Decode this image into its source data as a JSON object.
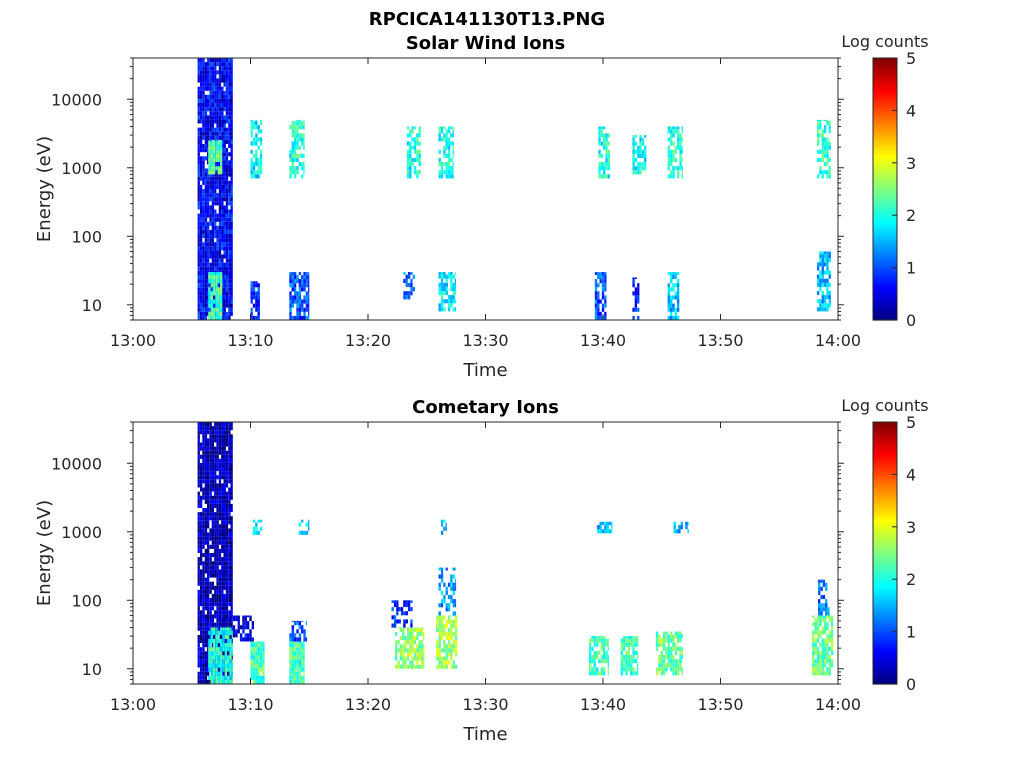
{
  "figure_title": "RPCICA141130T13.PNG",
  "chart_data": [
    {
      "type": "heatmap",
      "title": "Solar Wind Ions",
      "xlabel": "Time",
      "ylabel": "Energy (eV)",
      "x_ticks": [
        "13:00",
        "13:10",
        "13:20",
        "13:30",
        "13:40",
        "13:50",
        "14:00"
      ],
      "y_ticks": [
        "10",
        "100",
        "1000",
        "10000"
      ],
      "y_scale": "log",
      "y_range": [
        6,
        40000
      ],
      "colorbar": {
        "label": "Log counts",
        "ticks": [
          "0",
          "1",
          "2",
          "3",
          "4",
          "5"
        ],
        "range": [
          0,
          5
        ],
        "colormap": "jet"
      },
      "blobs": [
        {
          "t": [
            5.5,
            8.5
          ],
          "e": [
            6,
            40000
          ],
          "v": 0.6,
          "d": 0.95,
          "seed": 3
        },
        {
          "t": [
            6.4,
            7.6
          ],
          "e": [
            800,
            2500
          ],
          "v": 2.3,
          "d": 0.9,
          "seed": 4
        },
        {
          "t": [
            6.4,
            7.6
          ],
          "e": [
            6,
            30
          ],
          "v": 2.2,
          "d": 0.9,
          "seed": 5
        },
        {
          "t": [
            10.0,
            11.0
          ],
          "e": [
            700,
            5000
          ],
          "v": 1.8,
          "d": 0.7,
          "seed": 6
        },
        {
          "t": [
            10.0,
            10.8
          ],
          "e": [
            6,
            22
          ],
          "v": 0.8,
          "d": 0.9,
          "seed": 7
        },
        {
          "t": [
            13.3,
            14.6
          ],
          "e": [
            700,
            5000
          ],
          "v": 2.0,
          "d": 0.7,
          "seed": 8
        },
        {
          "t": [
            13.3,
            15.0
          ],
          "e": [
            6,
            30
          ],
          "v": 1.0,
          "d": 0.8,
          "seed": 9
        },
        {
          "t": [
            23.3,
            24.5
          ],
          "e": [
            700,
            4000
          ],
          "v": 2.0,
          "d": 0.7,
          "seed": 10
        },
        {
          "t": [
            23.0,
            24.0
          ],
          "e": [
            12,
            30
          ],
          "v": 1.2,
          "d": 0.6,
          "seed": 11
        },
        {
          "t": [
            26.0,
            27.3
          ],
          "e": [
            700,
            4000
          ],
          "v": 2.0,
          "d": 0.7,
          "seed": 12
        },
        {
          "t": [
            26.0,
            27.5
          ],
          "e": [
            8,
            30
          ],
          "v": 1.8,
          "d": 0.7,
          "seed": 13
        },
        {
          "t": [
            39.6,
            40.6
          ],
          "e": [
            700,
            4000
          ],
          "v": 2.0,
          "d": 0.7,
          "seed": 14
        },
        {
          "t": [
            39.3,
            40.3
          ],
          "e": [
            6,
            30
          ],
          "v": 1.0,
          "d": 0.6,
          "seed": 15
        },
        {
          "t": [
            42.5,
            43.7
          ],
          "e": [
            800,
            3000
          ],
          "v": 1.9,
          "d": 0.7,
          "seed": 16
        },
        {
          "t": [
            42.5,
            43.1
          ],
          "e": [
            6,
            25
          ],
          "v": 0.8,
          "d": 0.7,
          "seed": 17
        },
        {
          "t": [
            45.5,
            46.8
          ],
          "e": [
            700,
            4000
          ],
          "v": 2.0,
          "d": 0.7,
          "seed": 18
        },
        {
          "t": [
            45.5,
            46.5
          ],
          "e": [
            6,
            30
          ],
          "v": 1.6,
          "d": 0.8,
          "seed": 19
        },
        {
          "t": [
            58.2,
            59.4
          ],
          "e": [
            700,
            5000
          ],
          "v": 2.1,
          "d": 0.7,
          "seed": 20
        },
        {
          "t": [
            58.2,
            59.4
          ],
          "e": [
            8,
            60
          ],
          "v": 1.6,
          "d": 0.7,
          "seed": 21
        }
      ]
    },
    {
      "type": "heatmap",
      "title": "Cometary Ions",
      "xlabel": "Time",
      "ylabel": "Energy (eV)",
      "x_ticks": [
        "13:00",
        "13:10",
        "13:20",
        "13:30",
        "13:40",
        "13:50",
        "14:00"
      ],
      "y_ticks": [
        "10",
        "100",
        "1000",
        "10000"
      ],
      "y_scale": "log",
      "y_range": [
        6,
        40000
      ],
      "colorbar": {
        "label": "Log counts",
        "ticks": [
          "0",
          "1",
          "2",
          "3",
          "4",
          "5"
        ],
        "range": [
          0,
          5
        ],
        "colormap": "jet"
      },
      "blobs": [
        {
          "t": [
            5.5,
            8.5
          ],
          "e": [
            6,
            40000
          ],
          "v": 0.25,
          "d": 0.92,
          "seed": 31
        },
        {
          "t": [
            6.4,
            8.5
          ],
          "e": [
            6,
            40
          ],
          "v": 2.0,
          "d": 0.9,
          "seed": 32
        },
        {
          "t": [
            8.5,
            10.3
          ],
          "e": [
            25,
            60
          ],
          "v": 0.5,
          "d": 0.7,
          "seed": 33
        },
        {
          "t": [
            10.0,
            11.2
          ],
          "e": [
            6,
            25
          ],
          "v": 2.2,
          "d": 0.95,
          "seed": 34
        },
        {
          "t": [
            13.3,
            14.6
          ],
          "e": [
            6,
            25
          ],
          "v": 2.2,
          "d": 0.95,
          "seed": 35
        },
        {
          "t": [
            13.3,
            14.8
          ],
          "e": [
            25,
            50
          ],
          "v": 1.0,
          "d": 0.6,
          "seed": 36
        },
        {
          "t": [
            10.2,
            11.0
          ],
          "e": [
            900,
            1500
          ],
          "v": 1.6,
          "d": 0.6,
          "seed": 37
        },
        {
          "t": [
            14.1,
            15.0
          ],
          "e": [
            900,
            1500
          ],
          "v": 1.6,
          "d": 0.6,
          "seed": 38
        },
        {
          "t": [
            22.3,
            24.8
          ],
          "e": [
            10,
            40
          ],
          "v": 2.6,
          "d": 0.8,
          "seed": 39
        },
        {
          "t": [
            22.0,
            23.8
          ],
          "e": [
            40,
            100
          ],
          "v": 0.8,
          "d": 0.5,
          "seed": 40
        },
        {
          "t": [
            25.8,
            27.6
          ],
          "e": [
            10,
            60
          ],
          "v": 2.7,
          "d": 0.8,
          "seed": 41
        },
        {
          "t": [
            26.0,
            27.5
          ],
          "e": [
            60,
            300
          ],
          "v": 1.4,
          "d": 0.5,
          "seed": 42
        },
        {
          "t": [
            26.2,
            26.7
          ],
          "e": [
            900,
            1500
          ],
          "v": 1.5,
          "d": 0.6,
          "seed": 43
        },
        {
          "t": [
            38.8,
            40.5
          ],
          "e": [
            8,
            30
          ],
          "v": 2.2,
          "d": 0.8,
          "seed": 44
        },
        {
          "t": [
            41.5,
            43.0
          ],
          "e": [
            8,
            30
          ],
          "v": 2.2,
          "d": 0.8,
          "seed": 45
        },
        {
          "t": [
            44.5,
            46.8
          ],
          "e": [
            8,
            35
          ],
          "v": 2.4,
          "d": 0.8,
          "seed": 46
        },
        {
          "t": [
            39.5,
            40.8
          ],
          "e": [
            950,
            1400
          ],
          "v": 1.5,
          "d": 0.6,
          "seed": 47
        },
        {
          "t": [
            46.0,
            47.3
          ],
          "e": [
            950,
            1400
          ],
          "v": 1.5,
          "d": 0.6,
          "seed": 48
        },
        {
          "t": [
            57.8,
            59.6
          ],
          "e": [
            8,
            60
          ],
          "v": 2.4,
          "d": 0.8,
          "seed": 49
        },
        {
          "t": [
            58.3,
            59.3
          ],
          "e": [
            60,
            200
          ],
          "v": 1.2,
          "d": 0.5,
          "seed": 50
        }
      ]
    }
  ]
}
